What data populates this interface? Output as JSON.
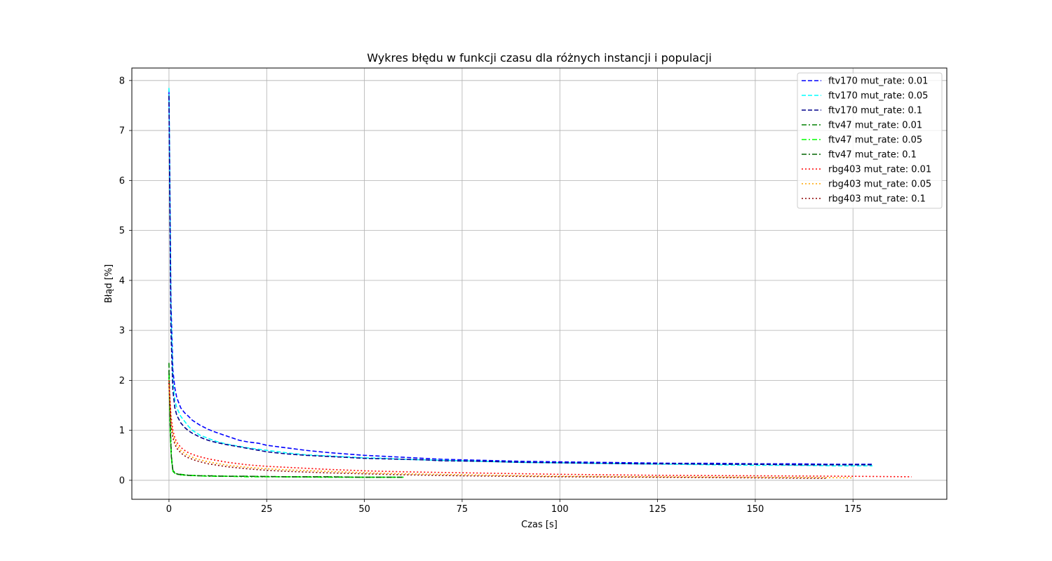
{
  "chart_data": {
    "type": "line",
    "title": "Wykres błędu w funkcji czasu dla różnych instancji i populacji",
    "xlabel": "Czas [s]",
    "ylabel": "Błąd [%]",
    "xlim": [
      -9.5,
      199
    ],
    "ylim": [
      -0.38,
      8.25
    ],
    "xticks": [
      0,
      25,
      50,
      75,
      100,
      125,
      150,
      175
    ],
    "xtick_labels": [
      "0",
      "25",
      "50",
      "75",
      "100",
      "125",
      "150",
      "175"
    ],
    "yticks": [
      0,
      1,
      2,
      3,
      4,
      5,
      6,
      7,
      8
    ],
    "ytick_labels": [
      "0",
      "1",
      "2",
      "3",
      "4",
      "5",
      "6",
      "7",
      "8"
    ],
    "grid": true,
    "legend_position": "top-right",
    "series": [
      {
        "name": "ftv170 mut_rate: 0.01",
        "color": "#0000ff",
        "style": "dashed",
        "x": [
          0,
          0.5,
          1,
          1.5,
          2,
          3,
          4,
          5,
          6,
          8,
          10,
          12,
          15,
          18,
          20,
          23,
          25,
          30,
          35,
          40,
          45,
          50,
          55,
          60,
          65,
          70,
          80,
          90,
          100,
          110,
          120,
          130,
          140,
          150,
          160,
          170,
          180
        ],
        "y": [
          7.8,
          3.6,
          2.2,
          1.85,
          1.65,
          1.45,
          1.35,
          1.28,
          1.2,
          1.1,
          1.02,
          0.96,
          0.88,
          0.8,
          0.77,
          0.74,
          0.7,
          0.65,
          0.6,
          0.56,
          0.53,
          0.5,
          0.48,
          0.46,
          0.44,
          0.42,
          0.4,
          0.38,
          0.37,
          0.36,
          0.35,
          0.34,
          0.34,
          0.33,
          0.33,
          0.32,
          0.32
        ]
      },
      {
        "name": "ftv170 mut_rate: 0.05",
        "color": "#00ffff",
        "style": "dashed",
        "x": [
          0,
          0.5,
          1,
          1.5,
          2,
          3,
          4,
          5,
          6,
          8,
          10,
          12,
          15,
          18,
          20,
          23,
          25,
          30,
          35,
          40,
          45,
          50,
          55,
          60,
          65,
          70,
          80,
          90,
          100,
          110,
          120,
          130,
          140,
          150,
          160,
          170,
          180
        ],
        "y": [
          7.85,
          3.4,
          2.0,
          1.6,
          1.45,
          1.28,
          1.18,
          1.08,
          1.0,
          0.9,
          0.84,
          0.78,
          0.72,
          0.68,
          0.65,
          0.62,
          0.6,
          0.55,
          0.51,
          0.49,
          0.47,
          0.45,
          0.44,
          0.42,
          0.41,
          0.4,
          0.38,
          0.36,
          0.35,
          0.34,
          0.33,
          0.32,
          0.31,
          0.3,
          0.3,
          0.29,
          0.29
        ]
      },
      {
        "name": "ftv170 mut_rate: 0.1",
        "color": "#00008b",
        "style": "dashed",
        "x": [
          0,
          0.5,
          1,
          1.5,
          2,
          3,
          4,
          5,
          6,
          8,
          10,
          12,
          15,
          18,
          20,
          23,
          25,
          30,
          35,
          40,
          45,
          50,
          55,
          60,
          65,
          70,
          80,
          90,
          100,
          110,
          120,
          130,
          140,
          150,
          160,
          170,
          180
        ],
        "y": [
          7.7,
          3.0,
          1.8,
          1.45,
          1.3,
          1.15,
          1.06,
          0.99,
          0.94,
          0.86,
          0.8,
          0.76,
          0.71,
          0.67,
          0.64,
          0.6,
          0.57,
          0.53,
          0.5,
          0.48,
          0.46,
          0.44,
          0.43,
          0.42,
          0.41,
          0.39,
          0.38,
          0.36,
          0.35,
          0.34,
          0.33,
          0.33,
          0.32,
          0.32,
          0.31,
          0.31,
          0.31
        ]
      },
      {
        "name": "ftv47 mut_rate: 0.01",
        "color": "#008000",
        "style": "dashdot",
        "x": [
          0,
          0.3,
          0.6,
          1,
          1.5,
          2,
          3,
          5,
          8,
          10,
          15,
          20,
          30,
          40,
          50,
          60
        ],
        "y": [
          2.35,
          1.2,
          0.5,
          0.2,
          0.15,
          0.13,
          0.12,
          0.1,
          0.09,
          0.09,
          0.08,
          0.08,
          0.07,
          0.07,
          0.06,
          0.06
        ]
      },
      {
        "name": "ftv47 mut_rate: 0.05",
        "color": "#00ff00",
        "style": "dashdot",
        "x": [
          0,
          0.3,
          0.6,
          1,
          1.5,
          2,
          3,
          5,
          8,
          10,
          15,
          20,
          30,
          40,
          50,
          60
        ],
        "y": [
          2.1,
          1.0,
          0.45,
          0.18,
          0.14,
          0.12,
          0.11,
          0.1,
          0.09,
          0.08,
          0.08,
          0.07,
          0.07,
          0.06,
          0.06,
          0.06
        ]
      },
      {
        "name": "ftv47 mut_rate: 0.1",
        "color": "#006400",
        "style": "dashdot",
        "x": [
          0,
          0.3,
          0.6,
          1,
          1.5,
          2,
          3,
          5,
          8,
          10,
          15,
          20,
          30,
          40,
          50,
          60
        ],
        "y": [
          2.2,
          1.1,
          0.48,
          0.19,
          0.15,
          0.13,
          0.11,
          0.1,
          0.09,
          0.09,
          0.08,
          0.08,
          0.07,
          0.07,
          0.06,
          0.06
        ]
      },
      {
        "name": "rbg403 mut_rate: 0.01",
        "color": "#ff0000",
        "style": "dotted",
        "x": [
          0,
          0.5,
          1,
          1.5,
          2,
          3,
          4,
          5,
          7,
          10,
          15,
          20,
          25,
          30,
          40,
          50,
          60,
          75,
          100,
          125,
          150,
          175,
          190
        ],
        "y": [
          2.0,
          1.3,
          1.0,
          0.85,
          0.76,
          0.66,
          0.6,
          0.55,
          0.49,
          0.43,
          0.36,
          0.31,
          0.28,
          0.26,
          0.22,
          0.19,
          0.17,
          0.15,
          0.12,
          0.1,
          0.09,
          0.08,
          0.07
        ]
      },
      {
        "name": "rbg403 mut_rate: 0.05",
        "color": "#ffa500",
        "style": "dotted",
        "x": [
          0,
          0.5,
          1,
          1.5,
          2,
          3,
          4,
          5,
          7,
          10,
          15,
          20,
          25,
          30,
          40,
          50,
          60,
          75,
          100,
          125,
          150,
          175
        ],
        "y": [
          1.9,
          1.2,
          0.92,
          0.78,
          0.7,
          0.6,
          0.54,
          0.49,
          0.43,
          0.37,
          0.3,
          0.26,
          0.23,
          0.21,
          0.18,
          0.15,
          0.13,
          0.11,
          0.08,
          0.07,
          0.06,
          0.05
        ]
      },
      {
        "name": "rbg403 mut_rate: 0.1",
        "color": "#8b0000",
        "style": "dotted",
        "x": [
          0,
          0.5,
          1,
          1.5,
          2,
          3,
          4,
          5,
          7,
          10,
          15,
          20,
          25,
          30,
          40,
          50,
          60,
          75,
          100,
          125,
          150,
          168
        ],
        "y": [
          1.95,
          1.1,
          0.85,
          0.72,
          0.64,
          0.55,
          0.49,
          0.45,
          0.39,
          0.33,
          0.27,
          0.23,
          0.2,
          0.18,
          0.15,
          0.13,
          0.11,
          0.09,
          0.07,
          0.06,
          0.05,
          0.04
        ]
      }
    ]
  }
}
